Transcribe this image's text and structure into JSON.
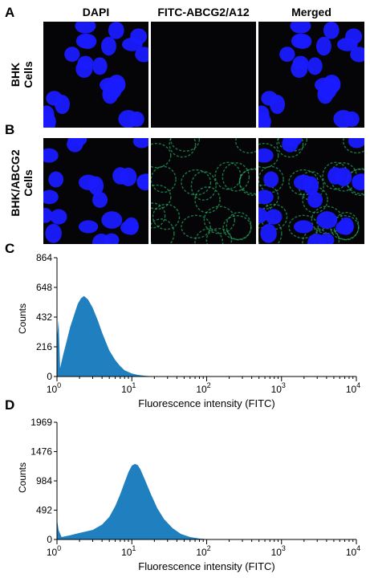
{
  "figure": {
    "panel_labels": {
      "a": "A",
      "b": "B",
      "c": "C",
      "d": "D"
    },
    "column_headers": [
      "DAPI",
      "FITC-ABCG2/A12",
      "Merged"
    ],
    "row_labels": {
      "a": [
        "BHK",
        "Cells"
      ],
      "b": [
        "BHK/ABCG2",
        "Cells"
      ]
    },
    "colors": {
      "dapi": "#1a1aff",
      "fitc": "#2dd47a",
      "histogram": "#1f7fbf",
      "background": "#050507"
    }
  },
  "chart_data": [
    {
      "type": "area",
      "panel": "C",
      "xlabel": "Fluorescence intensity (FITC)",
      "ylabel": "Counts",
      "x_scale": "log",
      "xlim": [
        1,
        10000
      ],
      "ylim": [
        0,
        864
      ],
      "x_ticks": [
        "10^0",
        "10^1",
        "10^2",
        "10^3",
        "10^4"
      ],
      "y_ticks": [
        0,
        216,
        432,
        648,
        864
      ],
      "x": [
        1,
        1.05,
        1.1,
        1.2,
        1.35,
        1.5,
        1.7,
        1.9,
        2.1,
        2.3,
        2.6,
        3.0,
        3.5,
        4.0,
        4.5,
        5.0,
        6.0,
        7.0,
        8.0,
        10.0,
        12.0,
        15.0,
        18.0,
        20.0
      ],
      "values": [
        270,
        410,
        60,
        150,
        260,
        360,
        450,
        530,
        570,
        585,
        560,
        500,
        410,
        320,
        250,
        190,
        120,
        75,
        45,
        22,
        12,
        5,
        2,
        0
      ]
    },
    {
      "type": "area",
      "panel": "D",
      "xlabel": "Fluorescence intensity (FITC)",
      "ylabel": "Counts",
      "x_scale": "log",
      "xlim": [
        1,
        10000
      ],
      "ylim": [
        0,
        1969
      ],
      "x_ticks": [
        "10^0",
        "10^1",
        "10^2",
        "10^3",
        "10^4"
      ],
      "y_ticks": [
        0,
        492,
        984,
        1476,
        1969
      ],
      "x": [
        1,
        1.05,
        1.15,
        1.5,
        2.0,
        3.0,
        4.0,
        5.0,
        6.0,
        7.0,
        8.0,
        9.0,
        10.0,
        11.0,
        12.0,
        13.0,
        15.0,
        18.0,
        22.0,
        27.0,
        35.0,
        45.0,
        60.0,
        80.0,
        100.0,
        120.0
      ],
      "values": [
        340,
        160,
        40,
        70,
        110,
        160,
        250,
        380,
        560,
        760,
        960,
        1130,
        1240,
        1270,
        1250,
        1180,
        1000,
        760,
        520,
        340,
        190,
        95,
        40,
        15,
        5,
        0
      ]
    }
  ]
}
